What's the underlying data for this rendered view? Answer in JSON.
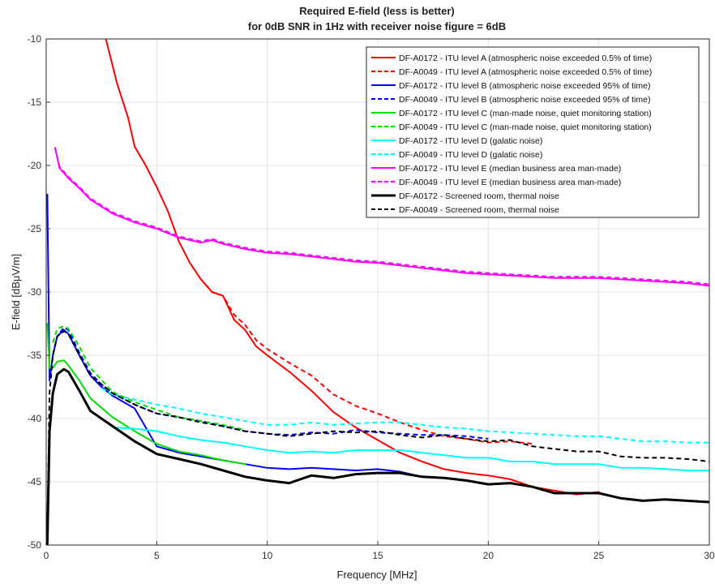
{
  "chart_data": {
    "type": "line",
    "title": "Required E-field (less is better)",
    "subtitle": "for 0dB SNR in 1Hz with receiver noise figure = 6dB",
    "xlabel": "Frequency [MHz]",
    "ylabel": "E-field [dBμV/m]",
    "xlim": [
      0,
      30
    ],
    "ylim": [
      -50,
      -10
    ],
    "x_ticks": [
      "0",
      "5",
      "10",
      "15",
      "20",
      "25",
      "30"
    ],
    "y_ticks": [
      "-10",
      "-15",
      "-20",
      "-25",
      "-30",
      "-35",
      "-40",
      "-45",
      "-50"
    ],
    "grid": true,
    "legend_position": "top-right",
    "series": [
      {
        "name": "DF-A0172 - ITU level A (atmospheric noise exceeded 0.5% of time)",
        "color": "#ff0000",
        "dash": "solid",
        "x": [
          2.7,
          3.2,
          3.7,
          4.0,
          4.5,
          5.0,
          5.5,
          6.0,
          6.5,
          7.0,
          7.5,
          8.0,
          8.5,
          9.0,
          9.5,
          10.0,
          11.0,
          12.0,
          13.0,
          14.0,
          15.0,
          16.0,
          17.0,
          18.0,
          19.0,
          20.0,
          21.0,
          22.0,
          23.0,
          24.0,
          25.0
        ],
        "y": [
          -10.0,
          -13.5,
          -16.2,
          -18.5,
          -20.0,
          -21.7,
          -23.6,
          -26.0,
          -27.7,
          -29.0,
          -30.0,
          -30.3,
          -32.2,
          -33.0,
          -34.3,
          -35.0,
          -36.3,
          -37.8,
          -39.5,
          -40.7,
          -41.7,
          -42.7,
          -43.4,
          -44.0,
          -44.3,
          -44.5,
          -44.8,
          -45.4,
          -45.7,
          -46.0,
          -45.8
        ]
      },
      {
        "name": "DF-A0049 - ITU level A (atmospheric noise exceeded 0.5% of time)",
        "color": "#ff0000",
        "dash": "dashed",
        "x": [
          7.0,
          7.5,
          8.0,
          8.5,
          9.0,
          9.5,
          10.0,
          11.0,
          12.0,
          13.0,
          14.0,
          15.0,
          16.0,
          17.0,
          18.0,
          19.0,
          20.0,
          21.0,
          22.0
        ],
        "y": [
          -29.0,
          -30.0,
          -30.3,
          -31.8,
          -32.6,
          -33.8,
          -34.5,
          -35.6,
          -36.6,
          -38.1,
          -39.0,
          -39.6,
          -40.3,
          -40.9,
          -41.4,
          -41.6,
          -41.9,
          -41.8,
          -42.0
        ]
      },
      {
        "name": "DF-A0172 - ITU level B (atmospheric noise exceeded 95% of time)",
        "color": "#0000ff",
        "dash": "solid",
        "x": [
          0.05,
          0.15,
          0.3,
          0.5,
          0.8,
          1.0,
          1.5,
          2.0,
          2.5,
          3.0,
          4.0,
          5.0,
          6.0,
          7.0,
          8.0,
          9.0,
          10.0,
          11.0,
          12.0,
          13.0,
          14.0,
          15.0,
          16.0,
          17.0
        ],
        "y": [
          -22.3,
          -37.0,
          -35.0,
          -33.5,
          -33.0,
          -33.3,
          -35.0,
          -36.6,
          -37.5,
          -38.2,
          -39.2,
          -42.2,
          -42.7,
          -43.0,
          -43.3,
          -43.6,
          -43.9,
          -44.0,
          -43.9,
          -44.0,
          -44.1,
          -44.0,
          -44.2,
          -44.6
        ]
      },
      {
        "name": "DF-A0049 - ITU level B (atmospheric noise exceeded 95% of time)",
        "color": "#0000ff",
        "dash": "dashed",
        "x": [
          0.3,
          0.5,
          0.8,
          1.0,
          1.5,
          2.0,
          2.5,
          3.0,
          4.0,
          5.0,
          6.0,
          7.0,
          8.0,
          9.0,
          10.0,
          11.0,
          12.0,
          13.0,
          14.0,
          15.0,
          16.0,
          17.0,
          18.0,
          19.0,
          20.0
        ],
        "y": [
          -35.0,
          -33.5,
          -32.8,
          -33.0,
          -34.8,
          -36.4,
          -37.3,
          -38.0,
          -38.9,
          -39.6,
          -39.9,
          -40.2,
          -40.6,
          -41.0,
          -41.2,
          -41.3,
          -41.1,
          -41.2,
          -40.9,
          -41.1,
          -41.2,
          -41.3,
          -41.3,
          -41.4,
          -41.6
        ]
      },
      {
        "name": "DF-A0172 - ITU level C (man-made noise, quiet monitoring station)",
        "color": "#00e000",
        "dash": "solid",
        "x": [
          0.05,
          0.15,
          0.3,
          0.5,
          0.8,
          1.0,
          1.5,
          2.0,
          3.0,
          4.0,
          5.0,
          6.0,
          7.0,
          8.0,
          9.0
        ],
        "y": [
          -32.5,
          -36.0,
          -36.0,
          -35.5,
          -35.4,
          -35.8,
          -37.0,
          -38.4,
          -39.9,
          -41.0,
          -42.0,
          -42.6,
          -42.9,
          -43.3,
          -43.6
        ]
      },
      {
        "name": "DF-A0049 - ITU level C (man-made noise, quiet monitoring station)",
        "color": "#00e000",
        "dash": "dashed",
        "x": [
          0.3,
          0.5,
          0.8,
          1.0,
          1.5,
          2.0,
          3.0,
          4.0,
          5.0,
          6.0,
          7.0,
          8.0,
          9.0
        ],
        "y": [
          -34.0,
          -32.9,
          -32.7,
          -32.9,
          -34.3,
          -36.0,
          -37.9,
          -38.7,
          -39.3,
          -39.9,
          -40.2,
          -40.5,
          -40.9
        ]
      },
      {
        "name": "DF-A0172 - ITU level D (galatic noise)",
        "color": "#00ffff",
        "dash": "solid",
        "x": [
          3.0,
          4.0,
          5.0,
          6.0,
          7.0,
          8.0,
          9.0,
          10.0,
          11.0,
          12.0,
          13.0,
          14.0,
          15.0,
          16.0,
          17.0,
          18.0,
          19.0,
          20.0,
          21.0,
          22.0,
          23.0,
          24.0,
          25.0,
          26.0,
          27.0,
          28.0,
          29.0,
          30.0
        ],
        "y": [
          -40.7,
          -40.8,
          -41.0,
          -41.4,
          -41.7,
          -41.9,
          -42.2,
          -42.5,
          -42.7,
          -42.6,
          -42.7,
          -42.5,
          -42.5,
          -42.5,
          -42.7,
          -42.9,
          -43.1,
          -43.1,
          -43.4,
          -43.4,
          -43.6,
          -43.6,
          -43.6,
          -43.9,
          -43.9,
          -44.0,
          -44.1,
          -44.1
        ]
      },
      {
        "name": "DF-A0049 - ITU level D (galatic noise)",
        "color": "#00ffff",
        "dash": "dashed",
        "x": [
          2.5,
          3.0,
          4.0,
          5.0,
          6.0,
          7.0,
          8.0,
          9.0,
          10.0,
          11.0,
          12.0,
          13.0,
          14.0,
          15.0,
          16.0,
          17.0,
          18.0,
          19.0,
          20.0,
          21.0,
          22.0,
          23.0,
          24.0,
          25.0,
          26.0,
          27.0,
          28.0,
          29.0,
          30.0
        ],
        "y": [
          -37.6,
          -38.1,
          -38.5,
          -38.9,
          -39.2,
          -39.6,
          -39.9,
          -40.2,
          -40.5,
          -40.5,
          -40.3,
          -40.5,
          -40.4,
          -40.3,
          -40.3,
          -40.5,
          -40.7,
          -40.8,
          -41.0,
          -41.1,
          -41.2,
          -41.3,
          -41.4,
          -41.4,
          -41.6,
          -41.8,
          -41.8,
          -41.9,
          -41.9
        ]
      },
      {
        "name": "DF-A0172 - ITU level E (median business area man-made)",
        "color": "#ff00ff",
        "dash": "solid",
        "x": [
          0.4,
          0.6,
          0.8,
          1.0,
          1.5,
          2.0,
          3.0,
          4.0,
          5.0,
          6.0,
          7.0,
          7.5,
          8.0,
          9.0,
          10.0,
          11.0,
          12.0,
          13.0,
          14.0,
          15.0,
          16.0,
          17.0,
          18.0,
          19.0,
          20.0,
          21.0,
          22.0,
          23.0,
          24.0,
          25.0,
          26.0,
          27.0,
          28.0,
          29.0,
          30.0
        ],
        "y": [
          -18.6,
          -20.2,
          -20.6,
          -21.0,
          -21.8,
          -22.7,
          -23.8,
          -24.5,
          -25.0,
          -25.7,
          -26.1,
          -25.9,
          -26.2,
          -26.6,
          -26.9,
          -27.0,
          -27.2,
          -27.4,
          -27.6,
          -27.7,
          -27.9,
          -28.1,
          -28.3,
          -28.5,
          -28.6,
          -28.7,
          -28.8,
          -28.9,
          -28.9,
          -28.9,
          -29.0,
          -29.1,
          -29.2,
          -29.3,
          -29.5
        ]
      },
      {
        "name": "DF-A0049 - ITU level E (median business area man-made)",
        "color": "#ff00ff",
        "dash": "dashed",
        "x": [
          0.4,
          0.6,
          0.8,
          1.0,
          1.5,
          2.0,
          3.0,
          4.0,
          5.0,
          6.0,
          7.0,
          7.5,
          8.0,
          9.0,
          10.0,
          11.0,
          12.0,
          13.0,
          14.0,
          15.0,
          16.0,
          17.0,
          18.0,
          19.0,
          20.0,
          21.0,
          22.0,
          23.0,
          24.0,
          25.0,
          26.0,
          27.0,
          28.0,
          29.0,
          30.0
        ],
        "y": [
          -18.6,
          -20.1,
          -20.5,
          -20.9,
          -21.7,
          -22.6,
          -23.7,
          -24.4,
          -24.9,
          -25.6,
          -26.0,
          -25.8,
          -26.1,
          -26.5,
          -26.8,
          -26.9,
          -27.1,
          -27.3,
          -27.5,
          -27.6,
          -27.8,
          -28.0,
          -28.2,
          -28.4,
          -28.5,
          -28.6,
          -28.7,
          -28.8,
          -28.8,
          -28.8,
          -28.9,
          -29.0,
          -29.1,
          -29.2,
          -29.4
        ]
      },
      {
        "name": "DF-A0172 - Screened room, thermal noise",
        "color": "#000000",
        "dash": "solid",
        "x": [
          0.05,
          0.15,
          0.3,
          0.5,
          0.8,
          1.0,
          1.5,
          2.0,
          3.0,
          4.0,
          5.0,
          6.0,
          7.0,
          8.0,
          9.0,
          10.0,
          11.0,
          12.0,
          13.0,
          14.0,
          15.0,
          16.0,
          17.0,
          18.0,
          19.0,
          20.0,
          21.0,
          22.0,
          23.0,
          24.0,
          25.0,
          26.0,
          27.0,
          28.0,
          29.0,
          30.0
        ],
        "y": [
          -49.9,
          -41.0,
          -38.0,
          -36.5,
          -36.1,
          -36.3,
          -37.8,
          -39.4,
          -40.6,
          -41.8,
          -42.8,
          -43.2,
          -43.6,
          -44.1,
          -44.6,
          -44.9,
          -45.1,
          -44.5,
          -44.7,
          -44.4,
          -44.3,
          -44.3,
          -44.6,
          -44.7,
          -44.9,
          -45.2,
          -45.1,
          -45.4,
          -45.9,
          -45.9,
          -45.9,
          -46.3,
          -46.5,
          -46.4,
          -46.5,
          -46.6
        ]
      },
      {
        "name": "DF-A0049 - Screened room, thermal noise",
        "color": "#000000",
        "dash": "dashed",
        "x": [
          0.05,
          0.15,
          0.3,
          0.5,
          0.8,
          1.0,
          1.5,
          2.0,
          3.0,
          4.0,
          5.0,
          6.0,
          7.0,
          8.0,
          9.0,
          10.0,
          11.0,
          12.0,
          13.0,
          14.0,
          15.0,
          16.0,
          17.0,
          18.0,
          19.0,
          20.0,
          21.0,
          22.0,
          23.0,
          24.0,
          25.0,
          26.0,
          27.0,
          28.0,
          29.0,
          30.0
        ],
        "y": [
          -49.0,
          -38.0,
          -35.0,
          -33.5,
          -33.1,
          -33.3,
          -35.0,
          -36.6,
          -38.0,
          -38.9,
          -39.6,
          -39.9,
          -40.3,
          -40.6,
          -41.0,
          -41.2,
          -41.4,
          -41.2,
          -41.0,
          -41.1,
          -41.0,
          -41.3,
          -41.5,
          -41.3,
          -41.6,
          -41.8,
          -41.7,
          -42.2,
          -42.4,
          -42.6,
          -42.6,
          -43.0,
          -43.1,
          -43.1,
          -43.2,
          -43.4
        ]
      }
    ]
  }
}
